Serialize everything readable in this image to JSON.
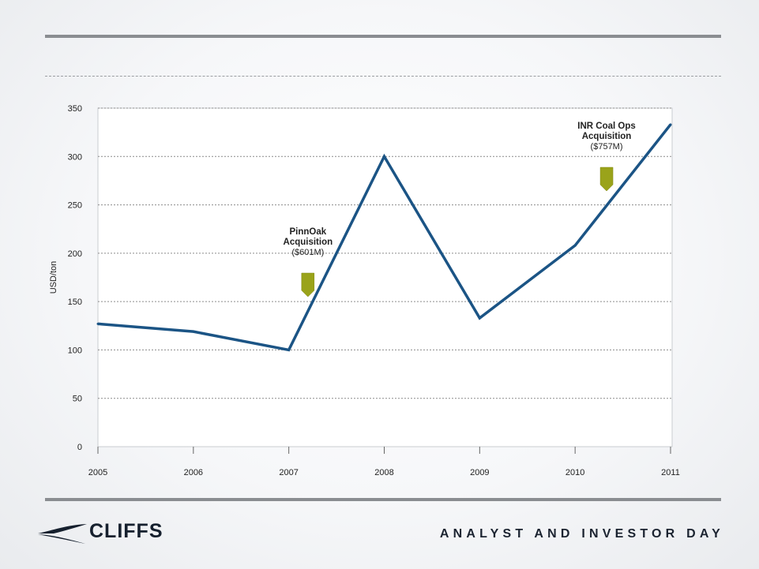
{
  "footer": {
    "brand": "CLIFFS",
    "event": "ANALYST AND INVESTOR DAY"
  },
  "colors": {
    "line": "#1b5485",
    "marker": "#9aa31a",
    "grid": "#8c8c8c"
  },
  "chart_data": {
    "type": "line",
    "ylabel": "USD/ton",
    "ylim": [
      0,
      350
    ],
    "yticks": [
      0,
      50,
      100,
      150,
      200,
      250,
      300,
      350
    ],
    "xlim": [
      2005,
      2011
    ],
    "xticks": [
      "2005",
      "2006",
      "2007",
      "2008",
      "2009",
      "2010",
      "2011"
    ],
    "grid": true,
    "series": [
      {
        "points": [
          {
            "x": 2005,
            "y": 127
          },
          {
            "x": 2006,
            "y": 119
          },
          {
            "x": 2007,
            "y": 100
          },
          {
            "x": 2008,
            "y": 300
          },
          {
            "x": 2009,
            "y": 133
          },
          {
            "x": 2010,
            "y": 208
          },
          {
            "x": 2011,
            "y": 333
          }
        ]
      }
    ],
    "annotations": [
      {
        "lines": [
          "PinnOak",
          "Acquisition"
        ],
        "sub": "($601M)",
        "x": 2007.2
      },
      {
        "lines": [
          "INR Coal Ops",
          "Acquisition"
        ],
        "sub": "($757M)",
        "x": 2010.33
      }
    ]
  }
}
